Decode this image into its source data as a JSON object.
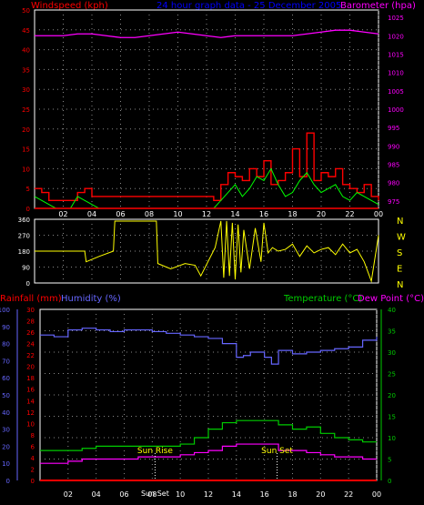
{
  "header": {
    "wind_label": "Windspeed (kph)",
    "title": "24 hour graph data - 25 December 2005",
    "baro_label": "Barometer (hpa)"
  },
  "colors": {
    "wind": "#ff0000",
    "gust_fill": "#cc0000",
    "wind_avg": "#00ff00",
    "barometer": "#ff00ff",
    "direction": "#ffff00",
    "humidity": "#6666ff",
    "temperature": "#00cc00",
    "dewpoint": "#ff00ff",
    "rainfall": "#ff0000",
    "sun_marker": "#ffffff",
    "grid": "#888888",
    "axis": "#ffffff"
  },
  "lower": {
    "rain_label": "Rainfall (mm)",
    "hum_label": "Humidity (%)",
    "temp_label": "Temperature (°C)",
    "dew_label": "Dew Point (°C)",
    "sunrise_label": "Sun Rise",
    "sunset_label": "Sun Set",
    "sunrise_time_label": "Sun Set"
  },
  "chart_data": [
    {
      "type": "line",
      "name": "wind-baro",
      "x_ticks": [
        "02",
        "04",
        "06",
        "08",
        "10",
        "12",
        "14",
        "16",
        "18",
        "20",
        "22",
        "00"
      ],
      "x_range": [
        0,
        24
      ],
      "y_left_ticks": [
        "0",
        "5",
        "10",
        "15",
        "20",
        "25",
        "30",
        "35",
        "40",
        "45",
        "50"
      ],
      "y_left_range": [
        0,
        50
      ],
      "y_right_ticks": [
        "975",
        "980",
        "985",
        "990",
        "995",
        "1000",
        "1005",
        "1010",
        "1015",
        "1020",
        "1025"
      ],
      "y_right_range": [
        973,
        1027
      ],
      "series": [
        {
          "name": "Windspeed",
          "axis": "left",
          "x": [
            0,
            0.5,
            1,
            1.5,
            2,
            2.5,
            3,
            3.5,
            4,
            4.5,
            5,
            6,
            7,
            8,
            9,
            10,
            11,
            12,
            12.5,
            13,
            13.5,
            14,
            14.5,
            15,
            15.5,
            16,
            16.5,
            17,
            17.5,
            18,
            18.5,
            19,
            19.5,
            20,
            20.5,
            21,
            21.5,
            22,
            22.5,
            23,
            23.5,
            24
          ],
          "y": [
            3,
            2,
            1,
            0,
            0,
            0,
            3,
            2,
            1,
            0,
            0,
            0,
            0,
            0,
            0,
            0,
            0,
            0,
            0,
            2,
            4,
            6,
            3,
            5,
            8,
            7,
            10,
            6,
            3,
            4,
            7,
            9,
            6,
            4,
            5,
            6,
            3,
            2,
            4,
            3,
            2,
            1
          ]
        },
        {
          "name": "Gust",
          "axis": "left",
          "x": [
            0,
            0.5,
            1,
            3,
            3.5,
            4,
            12.5,
            13,
            13.5,
            14,
            14.5,
            15,
            15.5,
            16,
            16.5,
            17,
            17.5,
            18,
            18.5,
            19,
            19.5,
            20,
            20.5,
            21,
            21.5,
            22,
            22.5,
            23,
            23.5,
            24
          ],
          "y": [
            5,
            4,
            2,
            4,
            5,
            3,
            2,
            6,
            9,
            8,
            7,
            10,
            8,
            12,
            6,
            7,
            9,
            15,
            8,
            19,
            7,
            9,
            8,
            10,
            6,
            5,
            4,
            6,
            3,
            2
          ]
        },
        {
          "name": "Barometer",
          "axis": "right",
          "x": [
            0,
            1,
            2,
            3,
            4,
            5,
            6,
            7,
            8,
            9,
            10,
            11,
            12,
            13,
            14,
            15,
            16,
            17,
            18,
            19,
            20,
            21,
            22,
            23,
            24
          ],
          "y": [
            1020,
            1020,
            1020,
            1020.5,
            1020.5,
            1020,
            1019.5,
            1019.5,
            1020,
            1020.5,
            1021,
            1020.5,
            1020,
            1019.5,
            1020,
            1020,
            1020,
            1020,
            1020,
            1020.5,
            1021,
            1021.5,
            1021.5,
            1021,
            1020.5
          ]
        }
      ]
    },
    {
      "type": "line",
      "name": "wind-direction",
      "x_range": [
        0,
        24
      ],
      "y_ticks": [
        "0",
        "90",
        "180",
        "270",
        "360"
      ],
      "y_range": [
        0,
        360
      ],
      "right_labels": [
        "N",
        "W",
        "S",
        "E",
        "N"
      ],
      "series": [
        {
          "name": "Direction",
          "x": [
            0,
            3.5,
            3.6,
            4.5,
            5.5,
            5.6,
            6.5,
            8.5,
            8.6,
            9.5,
            10.5,
            11.2,
            11.6,
            12.6,
            13,
            13.2,
            13.4,
            13.6,
            13.8,
            14,
            14.2,
            14.4,
            14.6,
            15,
            15.4,
            15.8,
            16,
            16.3,
            16.6,
            17,
            17.5,
            18,
            18.5,
            19,
            19.5,
            20,
            20.5,
            21,
            21.5,
            22,
            22.5,
            23,
            23.5,
            24
          ],
          "y": [
            180,
            180,
            120,
            150,
            180,
            350,
            350,
            350,
            110,
            80,
            110,
            100,
            40,
            200,
            350,
            30,
            350,
            40,
            340,
            20,
            330,
            60,
            300,
            80,
            310,
            120,
            340,
            170,
            200,
            180,
            190,
            220,
            150,
            210,
            170,
            190,
            200,
            160,
            220,
            170,
            190,
            120,
            10,
            270
          ]
        }
      ]
    },
    {
      "type": "line",
      "name": "temp-hum-rain",
      "x_ticks": [
        "02",
        "04",
        "06",
        "08",
        "10",
        "12",
        "14",
        "16",
        "18",
        "20",
        "22",
        "00"
      ],
      "x_range": [
        0,
        24
      ],
      "y_left_outer_ticks": [
        "0",
        "10",
        "20",
        "30",
        "40",
        "50",
        "60",
        "70",
        "80",
        "90",
        "100"
      ],
      "y_left_inner_ticks": [
        "0",
        "2",
        "4",
        "6",
        "8",
        "10",
        "12",
        "14",
        "16",
        "18",
        "20",
        "22",
        "24",
        "26",
        "28",
        "30"
      ],
      "y_right_ticks": [
        "0",
        "5",
        "10",
        "15",
        "20",
        "25",
        "30",
        "35",
        "40"
      ],
      "series": [
        {
          "name": "Humidity",
          "axis": "outer",
          "x": [
            0,
            1,
            2,
            3,
            4,
            5,
            6,
            7,
            8,
            9,
            10,
            11,
            12,
            13,
            14,
            14.5,
            15,
            16,
            16.5,
            17,
            18,
            19,
            20,
            21,
            22,
            23,
            24
          ],
          "y": [
            85,
            84,
            88,
            89,
            88,
            87,
            88,
            88,
            87,
            86,
            85,
            84,
            83,
            80,
            72,
            73,
            75,
            72,
            68,
            76,
            74,
            75,
            76,
            77,
            78,
            82,
            84
          ]
        },
        {
          "name": "Temperature",
          "axis": "right",
          "x": [
            0,
            1,
            2,
            3,
            4,
            5,
            6,
            7,
            8,
            9,
            10,
            11,
            12,
            13,
            14,
            15,
            16,
            17,
            18,
            19,
            20,
            21,
            22,
            23,
            24
          ],
          "y": [
            7,
            7,
            7,
            7.5,
            8,
            8,
            8,
            8,
            8,
            8,
            8.5,
            10,
            12,
            13.5,
            14,
            14,
            14,
            13,
            12,
            12.5,
            11,
            10,
            9.5,
            9,
            9
          ]
        },
        {
          "name": "Dew Point",
          "axis": "right",
          "x": [
            0,
            1,
            2,
            3,
            4,
            5,
            6,
            7,
            8,
            9,
            10,
            11,
            12,
            13,
            14,
            15,
            16,
            17,
            18,
            19,
            20,
            21,
            22,
            23,
            24
          ],
          "y": [
            4,
            4,
            4.5,
            5,
            5,
            5,
            5,
            5.5,
            5.5,
            5.5,
            6,
            6.5,
            7,
            8,
            8.5,
            8.5,
            8.5,
            7,
            7,
            6.5,
            6,
            5.5,
            5.5,
            5,
            5
          ]
        },
        {
          "name": "Rainfall",
          "axis": "inner",
          "x": [
            0,
            24
          ],
          "y": [
            0,
            0
          ]
        }
      ],
      "sunrise_hour": 8.2,
      "sunset_hour": 16.9
    }
  ]
}
